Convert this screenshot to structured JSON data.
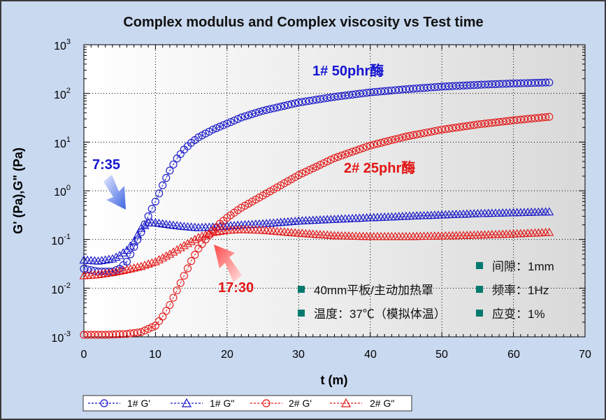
{
  "chart_data": {
    "type": "scatter",
    "title": "Complex modulus and Complex viscosity vs Test time",
    "xlabel": "t (m)",
    "ylabel": "G' (Pa),G\" (Pa)",
    "xlim": [
      0,
      70
    ],
    "ylim": [
      0.001,
      1000
    ],
    "yscale": "log",
    "grid": true,
    "x_ticks": [
      "0",
      "10",
      "20",
      "30",
      "40",
      "50",
      "60",
      "70"
    ],
    "y_ticks": [
      {
        "base": "10",
        "exp": "-3"
      },
      {
        "base": "10",
        "exp": "-2"
      },
      {
        "base": "10",
        "exp": "-1"
      },
      {
        "base": "10",
        "exp": "0"
      },
      {
        "base": "10",
        "exp": "1"
      },
      {
        "base": "10",
        "exp": "2"
      },
      {
        "base": "10",
        "exp": "3"
      }
    ],
    "legend_position": "bottom-left",
    "series": [
      {
        "name": "1# G'",
        "marker": "circle",
        "color": "#1414c8",
        "points": [
          [
            0,
            0.025
          ],
          [
            2,
            0.022
          ],
          [
            4,
            0.022
          ],
          [
            5,
            0.025
          ],
          [
            6,
            0.035
          ],
          [
            7,
            0.07
          ],
          [
            8,
            0.14
          ],
          [
            9,
            0.3
          ],
          [
            10,
            0.6
          ],
          [
            11,
            1.3
          ],
          [
            12,
            2.6
          ],
          [
            13,
            4.6
          ],
          [
            14,
            7
          ],
          [
            15,
            9.7
          ],
          [
            16,
            12.5
          ],
          [
            18,
            18
          ],
          [
            20,
            24
          ],
          [
            22,
            32
          ],
          [
            25,
            44
          ],
          [
            30,
            65
          ],
          [
            35,
            85
          ],
          [
            40,
            105
          ],
          [
            45,
            122
          ],
          [
            50,
            138
          ],
          [
            55,
            150
          ],
          [
            60,
            160
          ],
          [
            65,
            168
          ]
        ]
      },
      {
        "name": "1# G\"",
        "marker": "triangle",
        "color": "#1414c8",
        "points": [
          [
            0,
            0.038
          ],
          [
            2,
            0.036
          ],
          [
            4,
            0.04
          ],
          [
            5,
            0.047
          ],
          [
            6,
            0.06
          ],
          [
            7,
            0.09
          ],
          [
            8,
            0.17
          ],
          [
            9,
            0.22
          ],
          [
            10,
            0.22
          ],
          [
            12,
            0.2
          ],
          [
            14,
            0.185
          ],
          [
            16,
            0.175
          ],
          [
            18,
            0.18
          ],
          [
            20,
            0.19
          ],
          [
            25,
            0.21
          ],
          [
            30,
            0.24
          ],
          [
            35,
            0.26
          ],
          [
            40,
            0.28
          ],
          [
            45,
            0.3
          ],
          [
            50,
            0.32
          ],
          [
            55,
            0.34
          ],
          [
            60,
            0.355
          ],
          [
            65,
            0.37
          ]
        ]
      },
      {
        "name": "2# G'",
        "marker": "circle",
        "color": "#e31414",
        "points": [
          [
            0,
            0.0011
          ],
          [
            3,
            0.0011
          ],
          [
            6,
            0.00115
          ],
          [
            8,
            0.00125
          ],
          [
            10,
            0.0017
          ],
          [
            11,
            0.0026
          ],
          [
            12,
            0.0045
          ],
          [
            13,
            0.009
          ],
          [
            14,
            0.018
          ],
          [
            15,
            0.036
          ],
          [
            16,
            0.065
          ],
          [
            17,
            0.1
          ],
          [
            18,
            0.15
          ],
          [
            19,
            0.21
          ],
          [
            20,
            0.28
          ],
          [
            22,
            0.45
          ],
          [
            25,
            0.8
          ],
          [
            30,
            2.1
          ],
          [
            35,
            4.7
          ],
          [
            40,
            8.5
          ],
          [
            45,
            13
          ],
          [
            50,
            18
          ],
          [
            55,
            23
          ],
          [
            60,
            28
          ],
          [
            65,
            33
          ]
        ]
      },
      {
        "name": "2# G\"",
        "marker": "triangle",
        "color": "#e31414",
        "points": [
          [
            0,
            0.018
          ],
          [
            2,
            0.019
          ],
          [
            4,
            0.021
          ],
          [
            6,
            0.024
          ],
          [
            8,
            0.028
          ],
          [
            10,
            0.035
          ],
          [
            12,
            0.05
          ],
          [
            14,
            0.075
          ],
          [
            16,
            0.11
          ],
          [
            18,
            0.14
          ],
          [
            20,
            0.155
          ],
          [
            22,
            0.16
          ],
          [
            25,
            0.155
          ],
          [
            30,
            0.135
          ],
          [
            35,
            0.12
          ],
          [
            40,
            0.115
          ],
          [
            45,
            0.115
          ],
          [
            50,
            0.118
          ],
          [
            55,
            0.123
          ],
          [
            60,
            0.13
          ],
          [
            65,
            0.14
          ]
        ]
      }
    ],
    "annotations": {
      "label_1": "1# 50phr酶",
      "label_2": "2# 25phr酶",
      "time_1": "7:35",
      "time_2": "17:30"
    },
    "conditions": {
      "gap": "间隙：1mm",
      "plate": "40mm平板/主动加热罩",
      "frequency": "频率：1Hz",
      "temperature": "温度：37℃（模拟体温）",
      "strain": "应变：1%"
    },
    "colors": {
      "blue": "#1414c8",
      "red": "#e31414",
      "condition_marker": "#007a6e",
      "background": "#c9d9f0",
      "arrow_blue": "#4a6ee0",
      "arrow_red": "#ff6060"
    }
  }
}
